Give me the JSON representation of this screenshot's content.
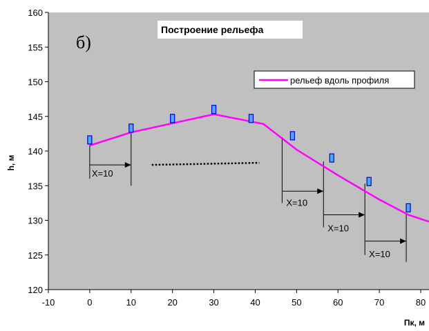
{
  "chart_data": {
    "type": "line",
    "title": "Построение рельефа",
    "panel_label": "б)",
    "xlabel": "Пк, м",
    "ylabel": "h, м",
    "xlim": [
      -10,
      82
    ],
    "ylim": [
      120,
      160
    ],
    "x_ticks": [
      -10,
      0,
      10,
      20,
      30,
      40,
      50,
      60,
      70,
      80
    ],
    "y_ticks": [
      120,
      125,
      130,
      135,
      140,
      145,
      150,
      155,
      160
    ],
    "x_tick_labels": [
      "-10",
      "0",
      "10",
      "20",
      "30",
      "40",
      "50",
      "60",
      "70",
      "80"
    ],
    "y_tick_labels": [
      "120",
      "125",
      "130",
      "135",
      "140",
      "145",
      "150",
      "155",
      "160"
    ],
    "grid": false,
    "legend_position": "top-right",
    "plot_background": "#c0c0c0",
    "series": [
      {
        "name": "рельеф вдоль профиля",
        "color": "#ff00ff",
        "x": [
          0,
          10,
          20,
          30,
          42,
          50,
          60,
          70,
          77,
          82
        ],
        "y": [
          140.8,
          142.7,
          144.0,
          145.3,
          143.9,
          140.2,
          136.5,
          133.0,
          130.8,
          129.8
        ]
      }
    ],
    "markers": {
      "color": "#4da6ff",
      "points": [
        {
          "x": 0,
          "y": 141.6
        },
        {
          "x": 10,
          "y": 143.3
        },
        {
          "x": 20,
          "y": 144.7
        },
        {
          "x": 30,
          "y": 146.0
        },
        {
          "x": 39,
          "y": 144.7
        },
        {
          "x": 49,
          "y": 142.2
        },
        {
          "x": 58.5,
          "y": 139.0
        },
        {
          "x": 67.5,
          "y": 135.6
        },
        {
          "x": 77,
          "y": 131.8
        }
      ]
    },
    "annotations": {
      "drops": [
        {
          "x": 0,
          "y_from": 140.8,
          "y_to": 136.0
        },
        {
          "x": 10,
          "y_from": 142.7,
          "y_to": 135.0
        },
        {
          "x": 46.5,
          "y_from": 142.0,
          "y_to": 132.5
        },
        {
          "x": 56.5,
          "y_from": 138.5,
          "y_to": 129.0
        },
        {
          "x": 66.5,
          "y_from": 135.3,
          "y_to": 125.0
        },
        {
          "x": 76.5,
          "y_from": 131.0,
          "y_to": 124.0
        }
      ],
      "arrows": [
        {
          "x_from": 0,
          "x_to": 10,
          "y": 138.0
        },
        {
          "x_from": 46.5,
          "x_to": 56.5,
          "y": 134.2
        },
        {
          "x_from": 56.5,
          "x_to": 66.5,
          "y": 130.8
        },
        {
          "x_from": 66.5,
          "x_to": 76.5,
          "y": 127.0
        }
      ],
      "labels": [
        {
          "text": "X=10",
          "x": 0.5,
          "y": 136.3
        },
        {
          "text": "X=10",
          "x": 47.5,
          "y": 132.1
        },
        {
          "text": "X=10",
          "x": 57.5,
          "y": 128.4
        },
        {
          "text": "X=10",
          "x": 67.5,
          "y": 124.7
        }
      ],
      "dotted_line": {
        "x_from": 15,
        "x_to": 41,
        "y_from": 138.0,
        "y_to": 138.3
      }
    }
  }
}
